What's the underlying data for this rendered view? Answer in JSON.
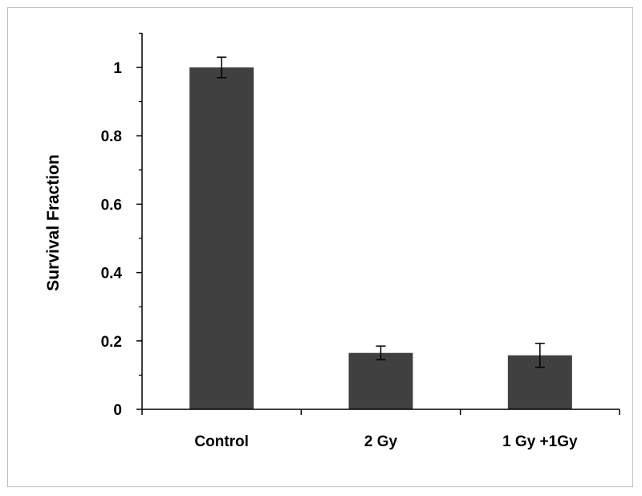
{
  "chart_data": {
    "type": "bar",
    "title": "",
    "xlabel": "",
    "ylabel": "Survival Fraction",
    "categories": [
      "Control",
      "2 Gy",
      "1 Gy +1Gy"
    ],
    "values": [
      1.0,
      0.165,
      0.158
    ],
    "error_bars": [
      0.03,
      0.02,
      0.035
    ],
    "ylim": [
      0,
      1.0
    ],
    "yticks": [
      "0",
      "0.2",
      "0.4",
      "0.6",
      "0.8",
      "1"
    ],
    "ytick_values": [
      0,
      0.2,
      0.4,
      0.6,
      0.8,
      1.0
    ],
    "grid": false,
    "legend": "none",
    "bar_color": "#404040"
  }
}
